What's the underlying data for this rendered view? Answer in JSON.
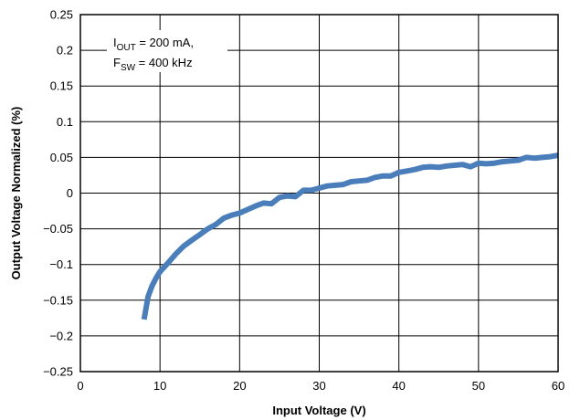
{
  "chart_data": {
    "type": "line",
    "xlabel": "Input Voltage (V)",
    "ylabel": "Output Voltage Normalized (%)",
    "xlim": [
      0,
      60
    ],
    "ylim": [
      -0.25,
      0.25
    ],
    "x_ticks": [
      "0",
      "10",
      "20",
      "30",
      "40",
      "50",
      "60"
    ],
    "y_ticks": [
      "0.25",
      "0.2",
      "0.15",
      "0.1",
      "0.05",
      "0",
      "−0.05",
      "−0.1",
      "−0.15",
      "−0.2",
      "−0.25"
    ],
    "grid": true,
    "annotation": {
      "line1": {
        "main": "I",
        "sub": "OUT",
        "rest": " = 200 mA,"
      },
      "line2": {
        "main": "F",
        "sub": "SW",
        "rest": " = 400 kHz"
      }
    },
    "series": [
      {
        "color": "#4a7ebb",
        "x": [
          8,
          8.5,
          9,
          9.5,
          10,
          11,
          12,
          13,
          14,
          15,
          16,
          17,
          18,
          19,
          20,
          21,
          22,
          23,
          24,
          25,
          26,
          27,
          28,
          29,
          30,
          31,
          32,
          33,
          34,
          35,
          36,
          37,
          38,
          39,
          40,
          41,
          42,
          43,
          44,
          45,
          46,
          47,
          48,
          49,
          50,
          51,
          52,
          53,
          54,
          55,
          56,
          57,
          58,
          59,
          60
        ],
        "y": [
          -0.177,
          -0.145,
          -0.13,
          -0.119,
          -0.11,
          -0.098,
          -0.085,
          -0.074,
          -0.066,
          -0.058,
          -0.05,
          -0.044,
          -0.035,
          -0.031,
          -0.028,
          -0.023,
          -0.018,
          -0.014,
          -0.015,
          -0.006,
          -0.004,
          -0.005,
          0.004,
          0.004,
          0.007,
          0.01,
          0.011,
          0.012,
          0.016,
          0.017,
          0.018,
          0.022,
          0.024,
          0.024,
          0.029,
          0.031,
          0.033,
          0.036,
          0.037,
          0.036,
          0.038,
          0.039,
          0.04,
          0.037,
          0.042,
          0.041,
          0.042,
          0.044,
          0.045,
          0.046,
          0.05,
          0.049,
          0.05,
          0.051,
          0.053
        ]
      }
    ]
  }
}
